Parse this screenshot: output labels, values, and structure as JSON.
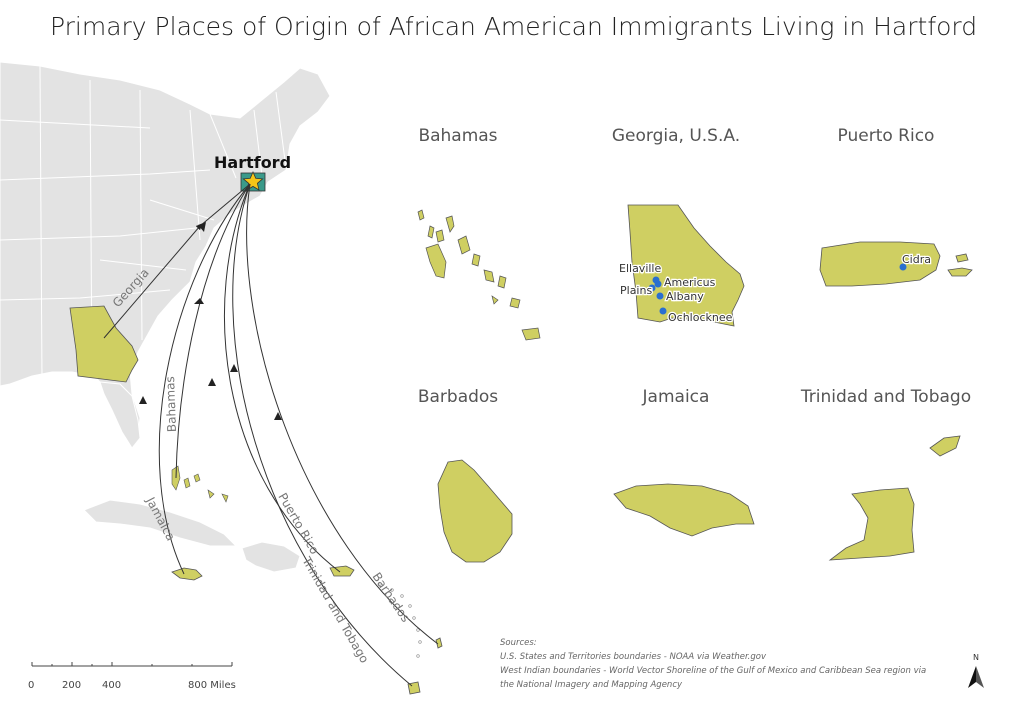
{
  "title": "Primary Places of Origin of African American Immigrants Living in Hartford",
  "destination": {
    "label": "Hartford"
  },
  "routes": [
    {
      "label": "Georgia"
    },
    {
      "label": "Bahamas"
    },
    {
      "label": "Jamaica"
    },
    {
      "label": "Puerto Rico"
    },
    {
      "label": "Trinidad and Tobago"
    },
    {
      "label": "Barbados"
    }
  ],
  "panels": [
    {
      "title": "Bahamas"
    },
    {
      "title": "Georgia, U.S.A."
    },
    {
      "title": "Puerto Rico"
    },
    {
      "title": "Barbados"
    },
    {
      "title": "Jamaica"
    },
    {
      "title": "Trinidad and Tobago"
    }
  ],
  "georgia_cities": [
    "Ellaville",
    "Americus",
    "Plains",
    "Albany",
    "Ochlocknee"
  ],
  "puerto_rico_cities": [
    "Cidra"
  ],
  "scale_bar": {
    "labels": [
      "0",
      "200",
      "400",
      "800 Miles"
    ]
  },
  "sources": [
    "Sources:",
    "U.S. States and Territories boundaries - NOAA via Weather.gov",
    "West Indian boundaries - World Vector Shoreline of the Gulf of Mexico and Caribbean Sea region via",
    "the National Imagery and Mapping Agency"
  ],
  "north_arrow": {
    "label": "N"
  },
  "colors": {
    "origin_fill": "#cfcf62",
    "land_fill": "#e3e3e3",
    "destination_fill": "#3a9a8a",
    "star_fill": "#f5c518",
    "city_dot": "#2a6fd0"
  }
}
